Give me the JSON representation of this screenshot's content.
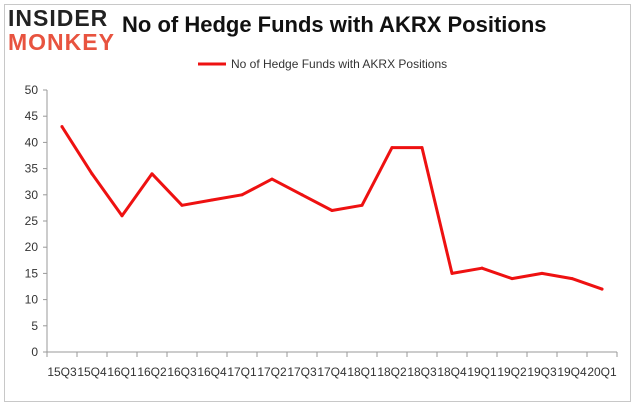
{
  "logo": {
    "line1": "INSIDER",
    "line2": "MONKEY"
  },
  "chart_data": {
    "type": "line",
    "title": "No of Hedge Funds with AKRX Positions",
    "categories": [
      "15Q3",
      "15Q4",
      "16Q1",
      "16Q2",
      "16Q3",
      "16Q4",
      "17Q1",
      "17Q2",
      "17Q3",
      "17Q4",
      "18Q1",
      "18Q2",
      "18Q3",
      "18Q4",
      "19Q1",
      "19Q2",
      "19Q3",
      "19Q4",
      "20Q1"
    ],
    "series": [
      {
        "name": "No of Hedge Funds with AKRX Positions",
        "color": "#ee1111",
        "values": [
          43,
          34,
          26,
          34,
          28,
          29,
          30,
          33,
          30,
          27,
          28,
          39,
          39,
          15,
          16,
          14,
          15,
          14,
          12
        ]
      }
    ],
    "yticks": [
      0,
      5,
      10,
      15,
      20,
      25,
      30,
      35,
      40,
      45,
      50
    ],
    "ylim": [
      0,
      50
    ],
    "grid": false,
    "legend": "top-center"
  }
}
